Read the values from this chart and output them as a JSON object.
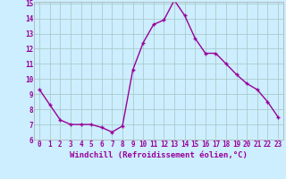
{
  "hours": [
    0,
    1,
    2,
    3,
    4,
    5,
    6,
    7,
    8,
    9,
    10,
    11,
    12,
    13,
    14,
    15,
    16,
    17,
    18,
    19,
    20,
    21,
    22,
    23
  ],
  "windchill": [
    9.3,
    8.3,
    7.3,
    7.0,
    7.0,
    7.0,
    6.8,
    6.5,
    6.9,
    10.6,
    12.4,
    13.6,
    13.9,
    15.2,
    14.2,
    12.7,
    11.7,
    11.7,
    11.0,
    10.3,
    9.7,
    9.3,
    8.5,
    7.5
  ],
  "line_color": "#990099",
  "marker": "+",
  "marker_size": 3,
  "bg_color": "#cceeff",
  "grid_color": "#aacccc",
  "xlabel": "Windchill (Refroidissement éolien,°C)",
  "ylabel": "",
  "ylim": [
    6,
    15
  ],
  "xlim": [
    -0.5,
    23.5
  ],
  "yticks": [
    6,
    7,
    8,
    9,
    10,
    11,
    12,
    13,
    14,
    15
  ],
  "xticks": [
    0,
    1,
    2,
    3,
    4,
    5,
    6,
    7,
    8,
    9,
    10,
    11,
    12,
    13,
    14,
    15,
    16,
    17,
    18,
    19,
    20,
    21,
    22,
    23
  ],
  "tick_label_color": "#990099",
  "tick_label_fontsize": 5.5,
  "xlabel_fontsize": 6.5,
  "xlabel_color": "#990099",
  "line_width": 1.0,
  "spine_color": "#aaaaaa",
  "marker_edge_width": 1.0
}
